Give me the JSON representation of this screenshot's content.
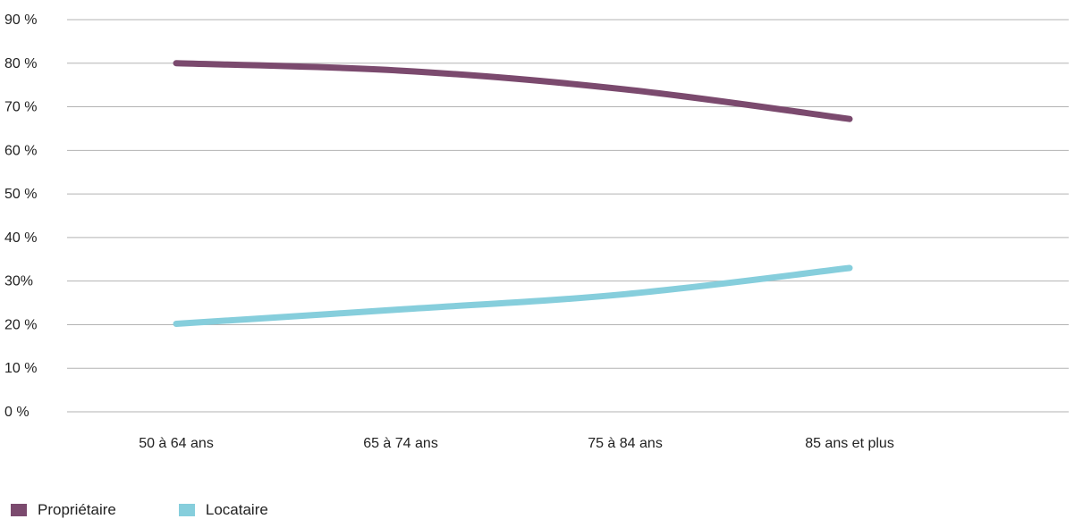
{
  "chart_data": {
    "type": "line",
    "categories": [
      "50 à 64 ans",
      "65 à 74 ans",
      "75 à 84 ans",
      "85 ans et plus"
    ],
    "series": [
      {
        "name": "Propriétaire",
        "color": "#7b4a6e",
        "values": [
          80,
          78.3,
          74,
          67.2
        ]
      },
      {
        "name": "Locataire",
        "color": "#86cedc",
        "values": [
          20.2,
          23.5,
          27,
          33
        ]
      }
    ],
    "ylim": [
      0,
      90
    ],
    "yticks": [
      {
        "value": 0,
        "label": "0 %"
      },
      {
        "value": 10,
        "label": "10 %"
      },
      {
        "value": 20,
        "label": "20 %"
      },
      {
        "value": 30,
        "label": "30%"
      },
      {
        "value": 40,
        "label": "40 %"
      },
      {
        "value": 50,
        "label": "50 %"
      },
      {
        "value": 60,
        "label": "60 %"
      },
      {
        "value": 70,
        "label": "70 %"
      },
      {
        "value": 80,
        "label": "80 %"
      },
      {
        "value": 90,
        "label": "90 %"
      }
    ],
    "grid": true,
    "legend_position": "bottom-left",
    "title": "",
    "xlabel": "",
    "ylabel": ""
  }
}
